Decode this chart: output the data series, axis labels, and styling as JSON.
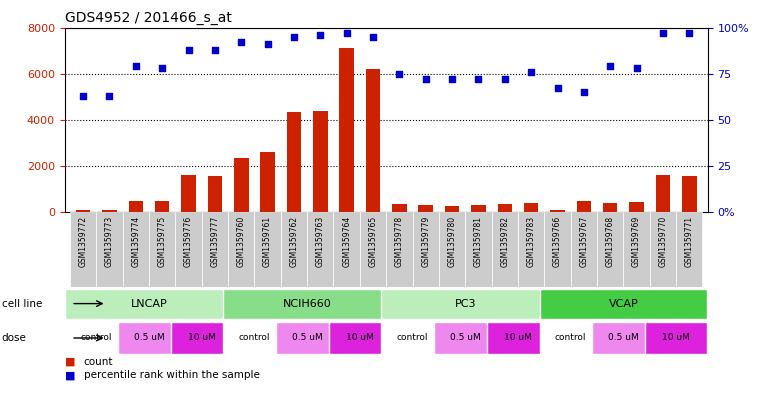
{
  "title": "GDS4952 / 201466_s_at",
  "samples": [
    "GSM1359772",
    "GSM1359773",
    "GSM1359774",
    "GSM1359775",
    "GSM1359776",
    "GSM1359777",
    "GSM1359760",
    "GSM1359761",
    "GSM1359762",
    "GSM1359763",
    "GSM1359764",
    "GSM1359765",
    "GSM1359778",
    "GSM1359779",
    "GSM1359780",
    "GSM1359781",
    "GSM1359782",
    "GSM1359783",
    "GSM1359766",
    "GSM1359767",
    "GSM1359768",
    "GSM1359769",
    "GSM1359770",
    "GSM1359771"
  ],
  "counts": [
    80,
    100,
    500,
    480,
    1600,
    1550,
    2350,
    2600,
    4350,
    4400,
    7100,
    6200,
    350,
    300,
    280,
    310,
    350,
    380,
    100,
    480,
    400,
    430,
    1600,
    1560
  ],
  "percentile_ranks": [
    63,
    63,
    79,
    78,
    88,
    88,
    92,
    91,
    95,
    96,
    97,
    95,
    75,
    72,
    72,
    72,
    72,
    76,
    67,
    65,
    79,
    78,
    97,
    97
  ],
  "cell_lines": [
    {
      "name": "LNCAP",
      "start": 0,
      "end": 6
    },
    {
      "name": "NCIH660",
      "start": 6,
      "end": 12
    },
    {
      "name": "PC3",
      "start": 12,
      "end": 18
    },
    {
      "name": "VCAP",
      "start": 18,
      "end": 24
    }
  ],
  "cell_line_colors": [
    "#bbeebb",
    "#88dd88",
    "#bbeebb",
    "#44cc44"
  ],
  "doses": [
    {
      "label": "control",
      "start": 0,
      "end": 2
    },
    {
      "label": "0.5 uM",
      "start": 2,
      "end": 4
    },
    {
      "label": "10 uM",
      "start": 4,
      "end": 6
    },
    {
      "label": "control",
      "start": 6,
      "end": 8
    },
    {
      "label": "0.5 uM",
      "start": 8,
      "end": 10
    },
    {
      "label": "10 uM",
      "start": 10,
      "end": 12
    },
    {
      "label": "control",
      "start": 12,
      "end": 14
    },
    {
      "label": "0.5 uM",
      "start": 14,
      "end": 16
    },
    {
      "label": "10 uM",
      "start": 16,
      "end": 18
    },
    {
      "label": "control",
      "start": 18,
      "end": 20
    },
    {
      "label": "0.5 uM",
      "start": 20,
      "end": 22
    },
    {
      "label": "10 uM",
      "start": 22,
      "end": 24
    }
  ],
  "dose_colors": {
    "control": "#ffffff",
    "0.5 uM": "#ee88ee",
    "10 uM": "#dd22dd"
  },
  "bar_color": "#cc2200",
  "dot_color": "#0000cc",
  "ylim_left": [
    0,
    8000
  ],
  "ylim_right": [
    0,
    100
  ],
  "yticks_left": [
    0,
    2000,
    4000,
    6000,
    8000
  ],
  "yticks_right": [
    0,
    25,
    50,
    75,
    100
  ],
  "sample_box_color": "#cccccc",
  "background_color": "#ffffff"
}
